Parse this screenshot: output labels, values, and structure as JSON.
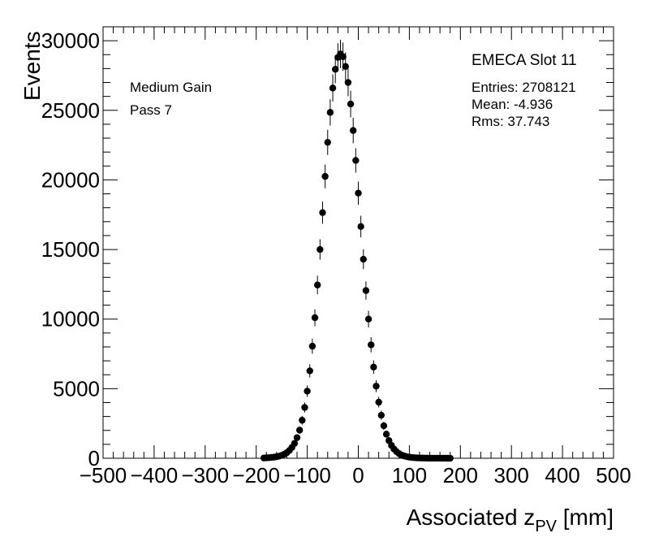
{
  "chart_data": {
    "type": "scatter",
    "title": "",
    "xlabel": "Associated z",
    "xlabel_subscript": "PV",
    "xlabel_unit": " [mm]",
    "ylabel": "Events",
    "xlim": [
      -500,
      500
    ],
    "ylim": [
      0,
      31000
    ],
    "x_ticks": [
      -500,
      -400,
      -300,
      -200,
      -100,
      0,
      100,
      200,
      300,
      400,
      500
    ],
    "x_tick_labels": [
      "−500",
      "−400",
      "−300",
      "−200",
      "−100",
      "0",
      "100",
      "200",
      "300",
      "400",
      "500"
    ],
    "y_ticks": [
      0,
      5000,
      10000,
      15000,
      20000,
      25000,
      30000
    ],
    "y_tick_labels": [
      "0",
      "5000",
      "10000",
      "15000",
      "20000",
      "25000",
      "30000"
    ],
    "grid": false,
    "annotations": [
      "Medium Gain",
      "Pass 7"
    ],
    "stats": {
      "title": "EMECA Slot 11",
      "entries": "Entries: 2708121",
      "mean": "Mean: -4.936",
      "rms": "Rms: 37.743"
    },
    "series": [
      {
        "color": "#000000",
        "x": [
          -185,
          -180,
          -175,
          -170,
          -165,
          -160,
          -155,
          -150,
          -145,
          -140,
          -135,
          -130,
          -125,
          -120,
          -115,
          -110,
          -105,
          -100,
          -95,
          -90,
          -85,
          -80,
          -75,
          -70,
          -65,
          -60,
          -55,
          -50,
          -45,
          -40,
          -35,
          -30,
          -25,
          -20,
          -15,
          -10,
          -5,
          0,
          5,
          10,
          15,
          20,
          25,
          30,
          35,
          40,
          45,
          50,
          55,
          60,
          65,
          70,
          75,
          80,
          85,
          90,
          95,
          100,
          105,
          110,
          115,
          120,
          125,
          130,
          135,
          140,
          145,
          150,
          155,
          160,
          165,
          170,
          175,
          180
        ],
        "y": [
          20,
          30,
          40,
          60,
          80,
          110,
          150,
          210,
          290,
          400,
          560,
          780,
          1070,
          1480,
          2020,
          2730,
          3650,
          4820,
          6280,
          8050,
          10100,
          12450,
          15000,
          17650,
          20250,
          22700,
          24850,
          26600,
          27950,
          28800,
          29050,
          28850,
          28150,
          27000,
          25450,
          23550,
          21400,
          19050,
          16650,
          14300,
          12050,
          10000,
          8150,
          6550,
          5180,
          4030,
          3090,
          2330,
          1730,
          1270,
          920,
          660,
          470,
          330,
          230,
          160,
          115,
          80,
          55,
          40,
          28,
          20,
          14,
          10,
          7,
          5,
          3,
          2,
          2,
          1,
          1,
          1,
          0,
          0
        ]
      }
    ]
  }
}
